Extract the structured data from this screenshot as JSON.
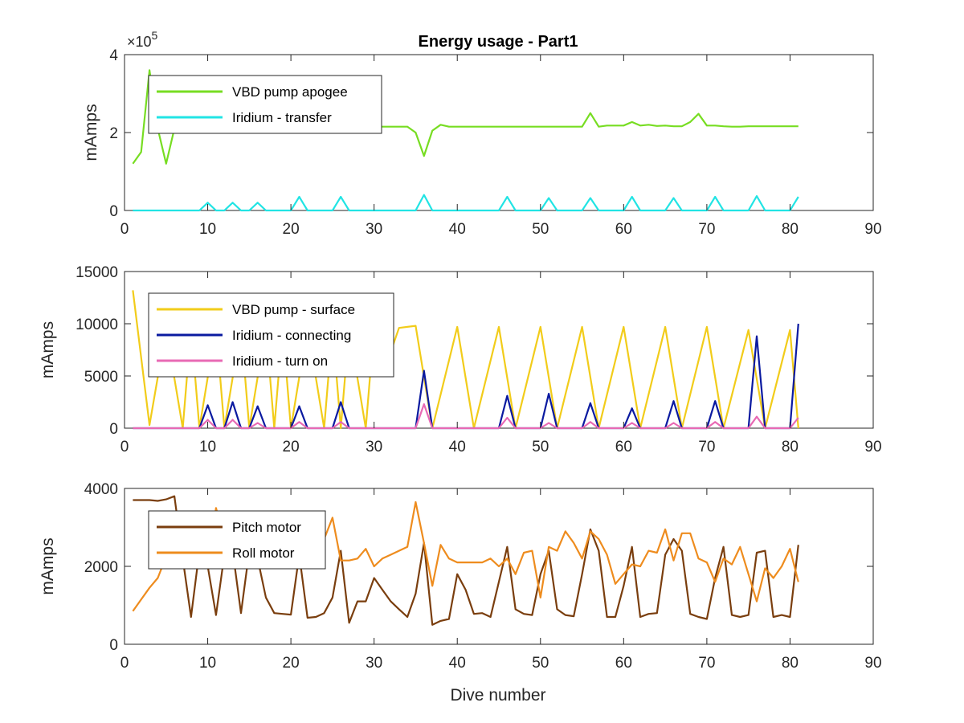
{
  "figure": {
    "title": "Energy usage - Part1",
    "xlabel": "Dive number"
  },
  "chart_data": [
    {
      "type": "line",
      "title": "Energy usage - Part1",
      "xlabel": "",
      "ylabel": "mAmps",
      "xlim": [
        0,
        90
      ],
      "ylim": [
        0,
        400000
      ],
      "xticks": [
        0,
        10,
        20,
        30,
        40,
        50,
        60,
        70,
        80,
        90
      ],
      "yticks": [
        0,
        200000,
        400000
      ],
      "ytick_labels": [
        "0",
        "2",
        "4"
      ],
      "y_exponent_mult": "×10",
      "y_exponent_pow": "5",
      "grid": false,
      "legend_position": "top-left",
      "series": [
        {
          "name": "VBD pump apogee",
          "color": "#77dd22",
          "x": [
            1,
            2,
            3,
            4,
            5,
            6,
            7,
            8,
            9,
            10,
            11,
            12,
            13,
            14,
            15,
            16,
            17,
            18,
            19,
            20,
            21,
            22,
            23,
            24,
            25,
            26,
            27,
            28,
            29,
            30,
            31,
            32,
            33,
            34,
            35,
            36,
            37,
            38,
            39,
            40,
            41,
            42,
            43,
            44,
            45,
            46,
            47,
            48,
            49,
            50,
            51,
            52,
            53,
            54,
            55,
            56,
            57,
            58,
            59,
            60,
            61,
            62,
            63,
            64,
            65,
            66,
            67,
            68,
            69,
            70,
            71,
            72,
            73,
            74,
            75,
            76,
            77,
            78,
            79,
            80,
            81
          ],
          "y": [
            120000,
            150000,
            360000,
            210000,
            120000,
            210000,
            215000,
            215000,
            215000,
            215000,
            215000,
            215000,
            215000,
            215000,
            215000,
            215000,
            215000,
            215000,
            215000,
            215000,
            215000,
            215000,
            215000,
            215000,
            215000,
            215000,
            215000,
            215000,
            215000,
            215000,
            215000,
            215000,
            215000,
            215000,
            200000,
            140000,
            205000,
            220000,
            215000,
            215000,
            215000,
            215000,
            215000,
            215000,
            215000,
            215000,
            215000,
            215000,
            215000,
            215000,
            215000,
            215000,
            215000,
            215000,
            215000,
            250000,
            215000,
            218000,
            218000,
            218000,
            227000,
            218000,
            220000,
            217000,
            218000,
            216000,
            216000,
            227000,
            248000,
            218000,
            218000,
            216000,
            215000,
            215000,
            216000,
            216000,
            216000,
            216000,
            216000,
            216000,
            216000
          ]
        },
        {
          "name": "Iridium - transfer",
          "color": "#22e4e4",
          "x": [
            1,
            8,
            9,
            10,
            11,
            12,
            13,
            14,
            15,
            16,
            17,
            20,
            21,
            22,
            25,
            26,
            27,
            35,
            36,
            37,
            45,
            46,
            47,
            50,
            51,
            52,
            55,
            56,
            57,
            60,
            61,
            62,
            65,
            66,
            67,
            70,
            71,
            72,
            75,
            76,
            77,
            80,
            81
          ],
          "y": [
            0,
            0,
            0,
            20000,
            0,
            0,
            20000,
            0,
            0,
            20000,
            0,
            0,
            35000,
            0,
            0,
            35000,
            0,
            0,
            40000,
            0,
            0,
            35000,
            0,
            0,
            32000,
            0,
            0,
            32000,
            0,
            0,
            35000,
            0,
            0,
            32000,
            0,
            0,
            35000,
            0,
            0,
            37000,
            0,
            0,
            35000
          ]
        }
      ]
    },
    {
      "type": "line",
      "xlabel": "",
      "ylabel": "mAmps",
      "xlim": [
        0,
        90
      ],
      "ylim": [
        0,
        15000
      ],
      "xticks": [
        0,
        10,
        20,
        30,
        40,
        50,
        60,
        70,
        80,
        90
      ],
      "yticks": [
        0,
        5000,
        10000,
        15000
      ],
      "ytick_labels": [
        "0",
        "5000",
        "10000",
        "15000"
      ],
      "grid": false,
      "legend_position": "top-left",
      "series": [
        {
          "name": "VBD pump - surface",
          "color": "#f2cc1a",
          "x": [
            1,
            3,
            5,
            7,
            8,
            9,
            11,
            12,
            14,
            15,
            17,
            18,
            19,
            20,
            22,
            24,
            25,
            26,
            27,
            29,
            30,
            31,
            33,
            35,
            37,
            40,
            42,
            45,
            47,
            50,
            52,
            55,
            57,
            60,
            62,
            65,
            67,
            70,
            72,
            75,
            77,
            80,
            81
          ],
          "y": [
            13200,
            300,
            9500,
            0,
            9700,
            0,
            9700,
            0,
            9700,
            0,
            9700,
            0,
            9700,
            0,
            9700,
            0,
            9700,
            0,
            9600,
            0,
            9700,
            5000,
            9600,
            9800,
            0,
            9700,
            0,
            9700,
            0,
            9700,
            0,
            9700,
            0,
            9700,
            0,
            9700,
            0,
            9700,
            0,
            9400,
            0,
            9400,
            0
          ]
        },
        {
          "name": "Iridium - connecting",
          "color": "#0a1aa0",
          "x": [
            1,
            8,
            9,
            10,
            11,
            12,
            13,
            14,
            15,
            16,
            17,
            20,
            21,
            22,
            25,
            26,
            27,
            35,
            36,
            37,
            45,
            46,
            47,
            50,
            51,
            52,
            55,
            56,
            57,
            60,
            61,
            62,
            65,
            66,
            67,
            70,
            71,
            72,
            75,
            76,
            77,
            80,
            81
          ],
          "y": [
            0,
            0,
            0,
            2200,
            0,
            0,
            2500,
            0,
            0,
            2100,
            0,
            0,
            2100,
            0,
            0,
            2500,
            0,
            0,
            5500,
            0,
            0,
            3100,
            0,
            0,
            3300,
            0,
            0,
            2400,
            0,
            0,
            1900,
            0,
            0,
            2600,
            0,
            0,
            2600,
            0,
            0,
            8800,
            0,
            0,
            10000
          ]
        },
        {
          "name": "Iridium - turn on",
          "color": "#e86ab4",
          "x": [
            1,
            9,
            10,
            11,
            12,
            13,
            14,
            15,
            16,
            17,
            20,
            21,
            22,
            25,
            26,
            27,
            35,
            36,
            37,
            45,
            46,
            47,
            50,
            51,
            52,
            55,
            56,
            57,
            60,
            61,
            62,
            65,
            66,
            67,
            70,
            71,
            72,
            75,
            76,
            77,
            80,
            81
          ],
          "y": [
            0,
            0,
            800,
            0,
            0,
            800,
            0,
            0,
            500,
            0,
            0,
            600,
            0,
            0,
            600,
            0,
            0,
            2300,
            0,
            0,
            1000,
            0,
            0,
            500,
            0,
            0,
            600,
            0,
            0,
            500,
            0,
            0,
            500,
            0,
            0,
            600,
            0,
            0,
            1100,
            0,
            0,
            1000
          ]
        }
      ]
    },
    {
      "type": "line",
      "xlabel": "Dive number",
      "ylabel": "mAmps",
      "xlim": [
        0,
        90
      ],
      "ylim": [
        0,
        4000
      ],
      "xticks": [
        0,
        10,
        20,
        30,
        40,
        50,
        60,
        70,
        80,
        90
      ],
      "yticks": [
        0,
        2000,
        4000
      ],
      "ytick_labels": [
        "0",
        "2000",
        "4000"
      ],
      "grid": false,
      "legend_position": "top-left",
      "series": [
        {
          "name": "Pitch motor",
          "color": "#7a3e0e",
          "x": [
            1,
            2,
            3,
            4,
            5,
            6,
            7,
            8,
            9,
            10,
            11,
            12,
            13,
            14,
            15,
            16,
            17,
            18,
            19,
            20,
            21,
            22,
            23,
            24,
            25,
            26,
            27,
            28,
            29,
            30,
            31,
            32,
            33,
            34,
            35,
            36,
            37,
            38,
            39,
            40,
            41,
            42,
            43,
            44,
            45,
            46,
            47,
            48,
            49,
            50,
            51,
            52,
            53,
            54,
            55,
            56,
            57,
            58,
            59,
            60,
            61,
            62,
            63,
            64,
            65,
            66,
            67,
            68,
            69,
            70,
            71,
            72,
            73,
            74,
            75,
            76,
            77,
            78,
            79,
            80,
            81
          ],
          "y": [
            3700,
            3700,
            3700,
            3680,
            3720,
            3800,
            2200,
            700,
            2400,
            2000,
            750,
            2300,
            2400,
            800,
            2400,
            2200,
            1200,
            800,
            780,
            760,
            2300,
            680,
            700,
            800,
            1200,
            2400,
            550,
            1100,
            1100,
            1700,
            1400,
            1100,
            900,
            700,
            1300,
            2600,
            500,
            600,
            650,
            1800,
            1400,
            780,
            800,
            700,
            1600,
            2500,
            900,
            780,
            750,
            1800,
            2400,
            900,
            750,
            720,
            1800,
            2950,
            2400,
            700,
            700,
            1500,
            2500,
            700,
            780,
            800,
            2300,
            2700,
            2400,
            780,
            700,
            650,
            1700,
            2500,
            750,
            700,
            750,
            2350,
            2400,
            700,
            750,
            700,
            2550
          ]
        },
        {
          "name": "Roll motor",
          "color": "#ee8c1e",
          "x": [
            1,
            2,
            3,
            4,
            5,
            6,
            7,
            8,
            9,
            10,
            11,
            12,
            13,
            14,
            15,
            16,
            17,
            18,
            19,
            20,
            21,
            22,
            23,
            24,
            25,
            26,
            27,
            28,
            29,
            30,
            31,
            32,
            33,
            34,
            35,
            36,
            37,
            38,
            39,
            40,
            41,
            42,
            43,
            44,
            45,
            46,
            47,
            48,
            49,
            50,
            51,
            52,
            53,
            54,
            55,
            56,
            57,
            58,
            59,
            60,
            61,
            62,
            63,
            64,
            65,
            66,
            67,
            68,
            69,
            70,
            71,
            72,
            73,
            74,
            75,
            76,
            77,
            78,
            79,
            80,
            81
          ],
          "y": [
            850,
            1150,
            1450,
            1700,
            2250,
            3150,
            3300,
            2350,
            2800,
            2000,
            3500,
            2700,
            3200,
            2800,
            3200,
            2700,
            2400,
            2600,
            2300,
            2100,
            2800,
            2600,
            2400,
            2700,
            3250,
            2150,
            2150,
            2200,
            2450,
            2000,
            2200,
            2300,
            2400,
            2500,
            3650,
            2600,
            1500,
            2550,
            2200,
            2100,
            2100,
            2100,
            2100,
            2200,
            2000,
            2200,
            1800,
            2350,
            2400,
            1200,
            2500,
            2400,
            2900,
            2600,
            2200,
            2900,
            2700,
            2300,
            1550,
            1800,
            2050,
            2000,
            2400,
            2350,
            2950,
            2150,
            2850,
            2850,
            2200,
            2100,
            1600,
            2200,
            2050,
            2500,
            1800,
            1100,
            1950,
            1700,
            2000,
            2450,
            1600
          ]
        }
      ]
    }
  ]
}
